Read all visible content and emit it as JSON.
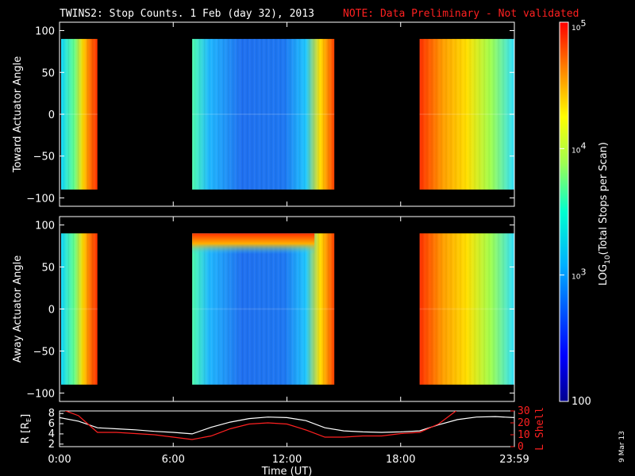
{
  "title": {
    "main": "TWINS2: Stop Counts.  1 Feb (day  32), 2013",
    "note": "NOTE: Data Preliminary - Not validated"
  },
  "footer_date": "9 Mar 13",
  "colors": {
    "background": "#000000",
    "axis": "#ffffff",
    "note": "#ff2020",
    "lshell": "#ff2020",
    "radius": "#ffffff"
  },
  "chart_data": [
    {
      "type": "heatmap",
      "name": "toward",
      "ylabel": "Toward Actuator Angle",
      "ylim": [
        -110,
        110
      ],
      "yticks": [
        100,
        50,
        0,
        -50,
        -100
      ],
      "data_range_deg": [
        -90,
        90
      ],
      "x_range_hours": [
        0,
        24
      ],
      "data_intervals_hours": [
        [
          0,
          2
        ],
        [
          7,
          14.5
        ],
        [
          19,
          24
        ]
      ],
      "colorscale": "log10",
      "color_range": [
        100,
        100000
      ]
    },
    {
      "type": "heatmap",
      "name": "away",
      "ylabel": "Away Actuator Angle",
      "ylim": [
        -110,
        110
      ],
      "yticks": [
        100,
        50,
        0,
        -50,
        -100
      ],
      "data_range_deg": [
        -90,
        90
      ],
      "x_range_hours": [
        0,
        24
      ],
      "data_intervals_hours": [
        [
          0,
          2
        ],
        [
          7,
          14.5
        ],
        [
          19,
          24
        ]
      ],
      "colorscale": "log10",
      "color_range": [
        100,
        100000
      ]
    },
    {
      "type": "line",
      "name": "orbit",
      "xlabel": "Time (UT)",
      "xticks": [
        "0:00",
        "6:00",
        "12:00",
        "18:00",
        "23:59"
      ],
      "x_range_hours": [
        0,
        24
      ],
      "left_axis": {
        "label": "R [R",
        "label_sub": "E",
        "label_close": "]",
        "ticks": [
          "8",
          "6",
          "4",
          "2"
        ],
        "ylim": [
          1.5,
          8.5
        ]
      },
      "right_axis": {
        "label": "L Shell",
        "ticks": [
          "30",
          "20",
          "10",
          "0"
        ],
        "ylim": [
          0,
          30
        ]
      },
      "series": [
        {
          "name": "R",
          "axis": "left",
          "x": [
            0,
            1,
            2,
            3,
            4,
            5,
            6,
            7,
            8,
            9,
            10,
            11,
            12,
            13,
            14,
            15,
            16,
            17,
            18,
            19,
            20,
            21,
            22,
            23,
            24
          ],
          "values": [
            7.2,
            6.5,
            5.2,
            5.0,
            4.8,
            4.5,
            4.3,
            4.0,
            5.3,
            6.3,
            7.0,
            7.3,
            7.2,
            6.6,
            5.2,
            4.6,
            4.4,
            4.3,
            4.4,
            4.6,
            5.8,
            6.8,
            7.3,
            7.4,
            7.2
          ]
        },
        {
          "name": "L Shell",
          "axis": "right",
          "x": [
            0,
            1,
            2,
            3,
            4,
            5,
            6,
            7,
            8,
            9,
            10,
            11,
            12,
            13,
            14,
            15,
            16,
            17,
            18,
            19,
            20,
            21
          ],
          "values": [
            32,
            26,
            12,
            12,
            11,
            10,
            8,
            6,
            9,
            15,
            19,
            20,
            19,
            14,
            8,
            8,
            9,
            9,
            11,
            12,
            19,
            31
          ]
        }
      ]
    }
  ],
  "colorbar": {
    "label_prefix": "LOG",
    "label_sub": "10",
    "label_suffix": "(Total Stops per Scan)",
    "tick_labels": [
      {
        "base": "10",
        "exp": "5",
        "value": 100000
      },
      {
        "base": "10",
        "exp": "4",
        "value": 10000
      },
      {
        "base": "10",
        "exp": "3",
        "value": 1000
      },
      {
        "plain": "100",
        "value": 100
      }
    ]
  }
}
